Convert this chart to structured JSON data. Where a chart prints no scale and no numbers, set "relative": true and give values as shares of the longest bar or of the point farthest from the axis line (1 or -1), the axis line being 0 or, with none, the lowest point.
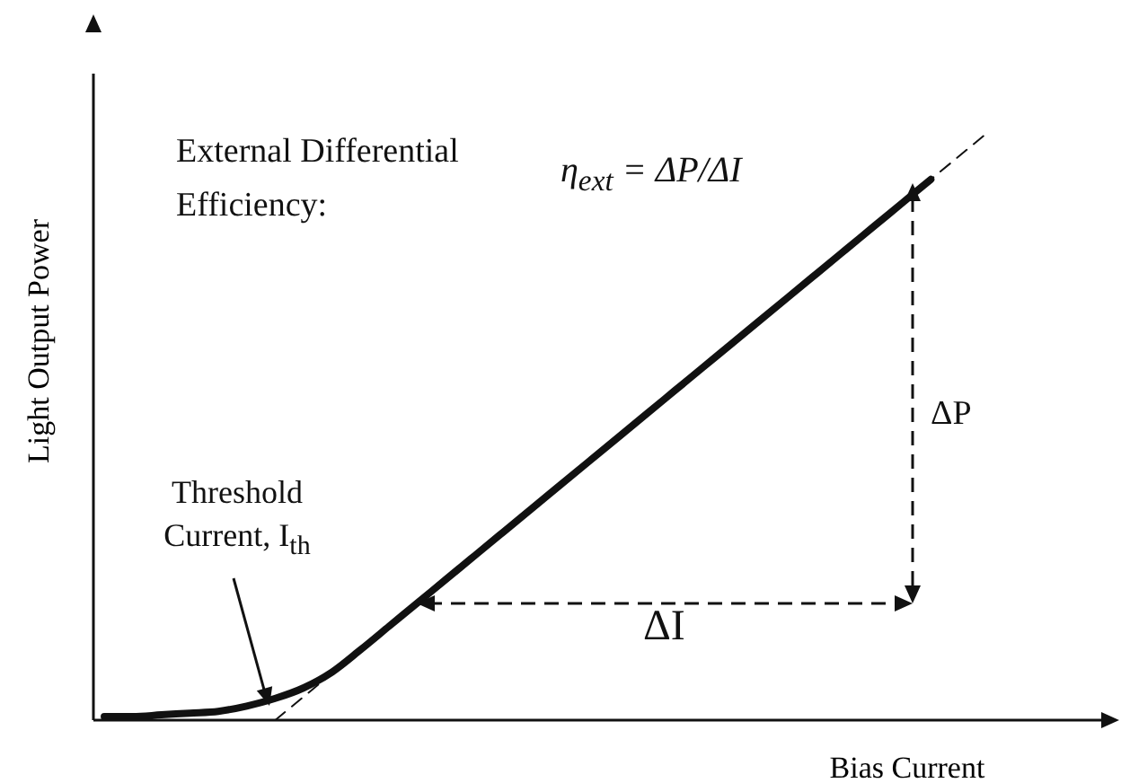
{
  "chart_data": {
    "type": "line",
    "relative": true,
    "xlabel": "Bias Current",
    "ylabel": "Light Output Power",
    "categories": [
      null,
      null,
      null,
      null,
      null,
      null,
      null,
      null,
      null,
      null,
      null,
      null,
      null,
      null,
      null,
      null,
      null,
      null,
      null,
      null,
      null,
      null,
      null,
      null,
      null,
      null,
      null,
      null,
      null,
      null,
      null,
      null
    ],
    "series": [
      {
        "color": "#111111",
        "line_style": "solid",
        "values": [
          0.006,
          0.006,
          0.009,
          0.012,
          0.015,
          0.024,
          0.037,
          0.055,
          0.082,
          0.12,
          0.16,
          0.2,
          0.24,
          0.28,
          0.32,
          0.36,
          0.4,
          0.44,
          0.48,
          0.52,
          0.56,
          0.6,
          0.64,
          0.68,
          0.72,
          0.76,
          0.8,
          0.84,
          0.88,
          0.92,
          null,
          null
        ]
      },
      {
        "color": "#111111",
        "line_style": "dashed",
        "values": [
          null,
          null,
          null,
          null,
          null,
          null,
          0,
          null,
          null,
          null,
          null,
          null,
          null,
          null,
          null,
          null,
          null,
          null,
          null,
          null,
          null,
          null,
          null,
          null,
          null,
          null,
          null,
          null,
          null,
          null,
          null,
          1
        ]
      }
    ],
    "annotations": [
      "External Differential Efficiency:",
      "η$_{ext}$ = ΔP/ΔI",
      "Threshold Current, I$_{th}$",
      "ΔP",
      "ΔI"
    ],
    "grid": false,
    "legend": false,
    "marker": "none"
  }
}
